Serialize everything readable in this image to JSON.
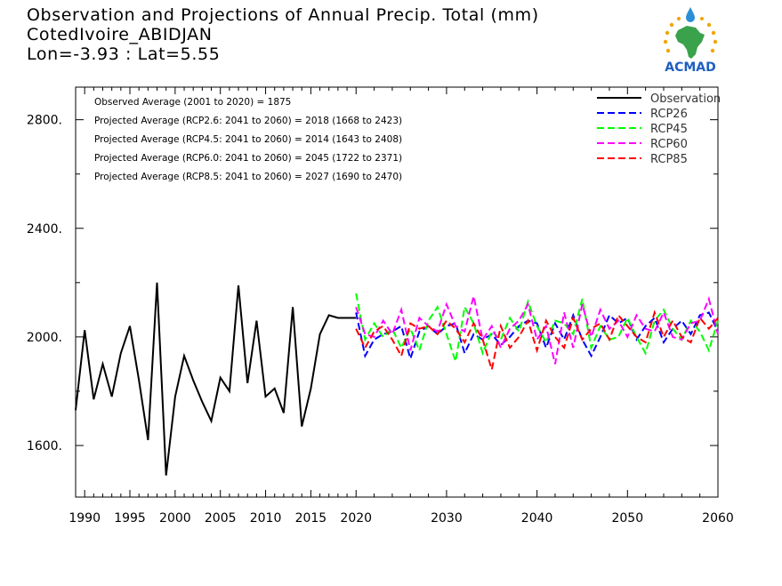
{
  "title_lines": [
    "Observation and Projections of Annual Precip. Total (mm)",
    "CotedIvoire_ABIDJAN",
    "Lon=-3.93 : Lat=5.55"
  ],
  "logo_text": "ACMAD",
  "chart_data": {
    "type": "line",
    "title": "Observation and Projections of Annual Precip. Total (mm)",
    "xlim": [
      1989,
      2060
    ],
    "ylim": [
      1410,
      2920
    ],
    "grid": false,
    "legend_position": "top-right",
    "y_ticks": [
      1600,
      2000,
      2400,
      2800
    ],
    "y_tick_labels": [
      "1600.",
      "2000.",
      "2400.",
      "2800."
    ],
    "x_ticks_labeled": [
      1990,
      1995,
      2000,
      2005,
      2010,
      2015,
      2020,
      2030,
      2040,
      2050,
      2060
    ],
    "x_tick_labels": [
      "1990",
      "1995",
      "2000",
      "2005",
      "2010",
      "2015",
      "2020",
      "2030",
      "2040",
      "2050",
      "2060"
    ],
    "annotations": [
      "Observed Average (2001 to 2020) = 1875",
      "Projected Average (RCP2.6: 2041 to 2060) = 2018 (1668 to 2423)",
      "Projected Average (RCP4.5: 2041 to 2060) = 2014 (1643 to 2408)",
      "Projected Average (RCP6.0: 2041 to 2060) = 2045 (1722 to 2371)",
      "Projected Average (RCP8.5: 2041 to 2060) = 2027 (1690 to 2470)"
    ],
    "series": [
      {
        "name": "Observation",
        "color": "#000000",
        "dashed": false,
        "x": [
          1989,
          1990,
          1991,
          1992,
          1993,
          1994,
          1995,
          1996,
          1997,
          1998,
          1999,
          2000,
          2001,
          2002,
          2003,
          2004,
          2005,
          2006,
          2007,
          2008,
          2009,
          2010,
          2011,
          2012,
          2013,
          2014,
          2015,
          2016,
          2017,
          2018,
          2019,
          2020
        ],
        "y": [
          1730,
          2025,
          1770,
          1900,
          1780,
          1940,
          2040,
          1840,
          1620,
          2200,
          1490,
          1780,
          1930,
          1840,
          1760,
          1690,
          1850,
          1800,
          2190,
          1830,
          2060,
          1780,
          1810,
          1720,
          2110,
          1670,
          1810,
          2010,
          2080,
          2070,
          2070,
          2070
        ]
      },
      {
        "name": "RCP26",
        "color": "#0000ff",
        "dashed": true,
        "x": [
          2020,
          2021,
          2022,
          2023,
          2024,
          2025,
          2026,
          2027,
          2028,
          2029,
          2030,
          2031,
          2032,
          2033,
          2034,
          2035,
          2036,
          2037,
          2038,
          2039,
          2040,
          2041,
          2042,
          2043,
          2044,
          2045,
          2046,
          2047,
          2048,
          2049,
          2050,
          2051,
          2052,
          2053,
          2054,
          2055,
          2056,
          2057,
          2058,
          2059,
          2060
        ],
        "y": [
          2090,
          1930,
          1990,
          2010,
          2020,
          2040,
          1920,
          2020,
          2040,
          2010,
          2040,
          2050,
          1940,
          2010,
          1990,
          2010,
          1970,
          2000,
          2040,
          2060,
          2050,
          1960,
          2050,
          1990,
          2080,
          1990,
          1930,
          2000,
          2080,
          2050,
          2070,
          1990,
          2040,
          2070,
          1980,
          2030,
          2060,
          2010,
          2080,
          2090,
          2020
        ]
      },
      {
        "name": "RCP45",
        "color": "#00ff00",
        "dashed": true,
        "x": [
          2020,
          2021,
          2022,
          2023,
          2024,
          2025,
          2026,
          2027,
          2028,
          2029,
          2030,
          2031,
          2032,
          2033,
          2034,
          2035,
          2036,
          2037,
          2038,
          2039,
          2040,
          2041,
          2042,
          2043,
          2044,
          2045,
          2046,
          2047,
          2048,
          2049,
          2050,
          2051,
          2052,
          2053,
          2054,
          2055,
          2056,
          2057,
          2058,
          2059,
          2060
        ],
        "y": [
          2160,
          1990,
          2050,
          2000,
          2030,
          1960,
          2030,
          1950,
          2060,
          2110,
          2010,
          1910,
          2110,
          2050,
          1940,
          2020,
          1990,
          2070,
          2020,
          2130,
          2040,
          1980,
          2060,
          2050,
          2010,
          2140,
          1960,
          2040,
          1990,
          2000,
          2070,
          2000,
          1940,
          2060,
          2100,
          2030,
          1990,
          2060,
          2020,
          1950,
          2060
        ]
      },
      {
        "name": "RCP60",
        "color": "#ff00ff",
        "dashed": true,
        "x": [
          2020,
          2021,
          2022,
          2023,
          2024,
          2025,
          2026,
          2027,
          2028,
          2029,
          2030,
          2031,
          2032,
          2033,
          2034,
          2035,
          2036,
          2037,
          2038,
          2039,
          2040,
          2041,
          2042,
          2043,
          2044,
          2045,
          2046,
          2047,
          2048,
          2049,
          2050,
          2051,
          2052,
          2053,
          2054,
          2055,
          2056,
          2057,
          2058,
          2059,
          2060
        ],
        "y": [
          2110,
          2010,
          2000,
          2060,
          2010,
          2100,
          1950,
          2070,
          2040,
          2020,
          2120,
          2040,
          2020,
          2150,
          1990,
          2040,
          1960,
          2030,
          2060,
          2120,
          1990,
          2040,
          1900,
          2090,
          1960,
          2120,
          2000,
          2100,
          2030,
          2060,
          2000,
          2080,
          2030,
          2020,
          2090,
          2000,
          1990,
          2050,
          2060,
          2140,
          2010
        ]
      },
      {
        "name": "RCP85",
        "color": "#ff0000",
        "dashed": true,
        "x": [
          2020,
          2021,
          2022,
          2023,
          2024,
          2025,
          2026,
          2027,
          2028,
          2029,
          2030,
          2031,
          2032,
          2033,
          2034,
          2035,
          2036,
          2037,
          2038,
          2039,
          2040,
          2041,
          2042,
          2043,
          2044,
          2045,
          2046,
          2047,
          2048,
          2049,
          2050,
          2051,
          2052,
          2053,
          2054,
          2055,
          2056,
          2057,
          2058,
          2059,
          2060
        ],
        "y": [
          2030,
          1960,
          2020,
          2040,
          1990,
          1930,
          2050,
          2030,
          2040,
          2010,
          2060,
          2030,
          1980,
          2050,
          1990,
          1880,
          2040,
          1960,
          2000,
          2060,
          1950,
          2060,
          2000,
          1960,
          2070,
          1990,
          2030,
          2050,
          1990,
          2080,
          2040,
          2000,
          1980,
          2090,
          2000,
          2060,
          2000,
          1980,
          2070,
          2030,
          2070
        ]
      }
    ]
  }
}
